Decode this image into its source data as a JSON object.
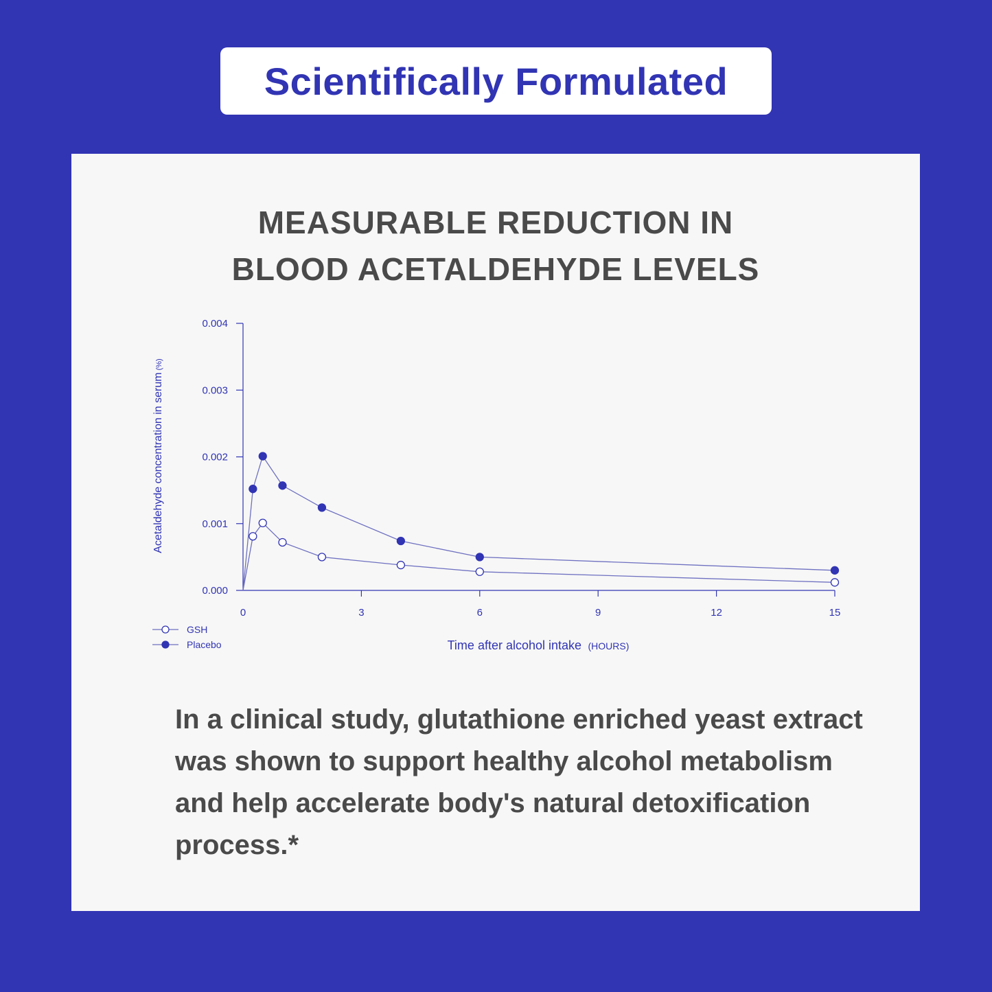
{
  "badge": {
    "label": "Scientifically Formulated"
  },
  "card": {
    "title_lines": [
      "MEASURABLE REDUCTION IN",
      "BLOOD ACETALDEHYDE LEVELS"
    ],
    "body": "In a clinical study, glutathione enriched yeast extract was shown to support healthy alcohol metabolism and help accelerate body's natural detoxification process.*"
  },
  "colors": {
    "background": "#3134b3",
    "card": "#f7f7f7",
    "accent": "#3134b3",
    "text": "#4a4a4a"
  },
  "chart_data": {
    "type": "line",
    "title": "",
    "xlabel": "Time after alcohol intake",
    "xlabel_unit": "(HOURS)",
    "ylabel": "Acetaldehyde concentration in serum (%)",
    "xlim": [
      0,
      15
    ],
    "ylim": [
      0,
      0.004
    ],
    "x_ticks": [
      0,
      3,
      6,
      9,
      12,
      15
    ],
    "x_tick_labels": [
      "0",
      "3",
      "6",
      "9",
      "12",
      "15"
    ],
    "y_ticks": [
      0,
      0.001,
      0.002,
      0.003,
      0.004
    ],
    "y_tick_labels": [
      "0.000",
      "0.001",
      "0.002",
      "0.003",
      "0.004"
    ],
    "grid": false,
    "legend_position": "bottom-left",
    "series": [
      {
        "name": "GSH",
        "marker": "open-circle",
        "x": [
          0,
          0.25,
          0.5,
          1,
          2,
          4,
          6,
          15
        ],
        "y": [
          0,
          0.00081,
          0.00101,
          0.00072,
          0.0005,
          0.00038,
          0.00028,
          0.00012
        ]
      },
      {
        "name": "Placebo",
        "marker": "filled-circle",
        "x": [
          0,
          0.25,
          0.5,
          1,
          2,
          4,
          6,
          15
        ],
        "y": [
          0,
          0.00152,
          0.00201,
          0.00157,
          0.00124,
          0.00074,
          0.0005,
          0.0003
        ]
      }
    ]
  }
}
